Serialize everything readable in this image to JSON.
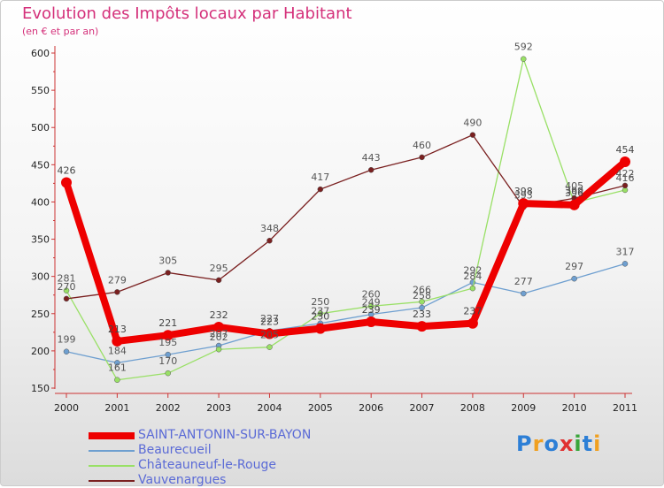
{
  "header": {
    "title": "Evolution des Impôts locaux par Habitant",
    "subtitle": "(en € et par an)"
  },
  "chart_data": {
    "type": "line",
    "title": "Evolution des Impôts locaux par Habitant",
    "subtitle": "(en € et par an)",
    "xlabel": "",
    "ylabel": "",
    "categories": [
      "2000",
      "2001",
      "2002",
      "2003",
      "2004",
      "2005",
      "2006",
      "2007",
      "2008",
      "2009",
      "2010",
      "2011"
    ],
    "ylim": [
      150,
      600
    ],
    "yticks": [
      150,
      200,
      250,
      300,
      350,
      400,
      450,
      500,
      550,
      600
    ],
    "grid": false,
    "legend_position": "bottom-left",
    "series": [
      {
        "name": "SAINT-ANTONIN-SUR-BAYON",
        "color": "#ee0000",
        "values": [
          426,
          213,
          221,
          232,
          223,
          230,
          239,
          233,
          237,
          398,
          396,
          454
        ]
      },
      {
        "name": "Beaurecueil",
        "color": "#6e9fd0",
        "values": [
          199,
          184,
          195,
          207,
          227,
          237,
          249,
          258,
          292,
          277,
          297,
          317
        ]
      },
      {
        "name": "Châteauneuf-le-Rouge",
        "color": "#99e066",
        "values": [
          281,
          161,
          170,
          202,
          205,
          250,
          260,
          266,
          284,
          592,
          399,
          416
        ]
      },
      {
        "name": "Vauvenargues",
        "color": "#7a2020",
        "values": [
          270,
          279,
          305,
          295,
          348,
          417,
          443,
          460,
          490,
          393,
          405,
          422
        ]
      }
    ]
  },
  "logo": {
    "letters": [
      "P",
      "r",
      "o",
      "x",
      "i",
      "t",
      "i"
    ],
    "colors": [
      "#2d7fd6",
      "#f0a020",
      "#2d7fd6",
      "#e03030",
      "#3aa53a",
      "#2d7fd6",
      "#f0a020"
    ]
  }
}
